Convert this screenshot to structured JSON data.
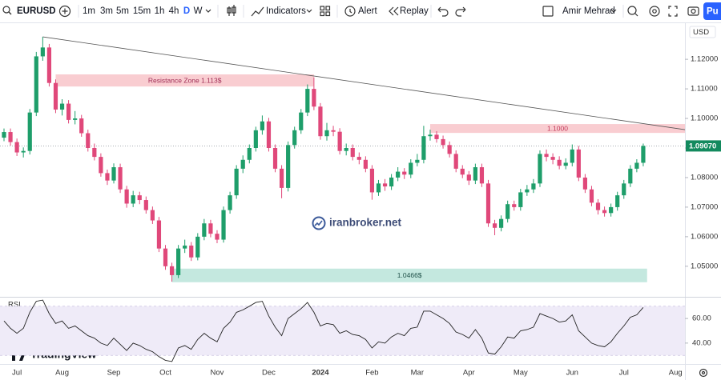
{
  "toolbar": {
    "symbol": "EURUSD",
    "intervals": [
      "1m",
      "3m",
      "5m",
      "15m",
      "1h",
      "4h",
      "D",
      "W"
    ],
    "active_interval": "D",
    "indicators": "Indicators",
    "alert": "Alert",
    "replay": "Replay",
    "user": "Amir Mehrad",
    "publish": "Pu"
  },
  "currency": "USD",
  "watermark": "iranbroker.net",
  "brand": "TradingView",
  "chart_data": [
    {
      "type": "candlestick",
      "up_color": "#1e9e6a",
      "down_color": "#e0487a",
      "categories": [
        null,
        null,
        "Jul",
        null,
        null,
        null,
        null,
        null,
        null,
        "Aug",
        null,
        null,
        null,
        null,
        null,
        null,
        null,
        "Sep",
        null,
        null,
        null,
        null,
        null,
        null,
        null,
        "Oct",
        null,
        null,
        null,
        null,
        null,
        null,
        null,
        "Nov",
        null,
        null,
        null,
        null,
        null,
        null,
        null,
        "Dec",
        null,
        null,
        null,
        null,
        null,
        null,
        null,
        "2024",
        null,
        null,
        null,
        null,
        null,
        null,
        null,
        "Feb",
        null,
        null,
        null,
        null,
        null,
        null,
        "Mar",
        null,
        null,
        null,
        null,
        null,
        null,
        null,
        "Apr",
        null,
        null,
        null,
        null,
        null,
        null,
        null,
        "May",
        null,
        null,
        null,
        null,
        null,
        null,
        null,
        "Jun",
        null,
        null,
        null,
        null,
        null,
        null,
        null,
        "Jul",
        null,
        null,
        null,
        null,
        null,
        null,
        null,
        "Aug",
        null
      ],
      "open": [
        1.0935,
        1.0954,
        1.092,
        1.0885,
        1.089,
        1.102,
        1.121,
        1.124,
        1.112,
        1.103,
        1.105,
        1.0995,
        1.1,
        1.095,
        1.09,
        1.087,
        1.0815,
        1.079,
        1.0835,
        1.076,
        1.0712,
        1.074,
        1.0724,
        1.069,
        1.0655,
        1.056,
        1.05,
        1.047,
        1.056,
        1.057,
        1.053,
        1.06,
        1.0645,
        1.061,
        1.059,
        1.069,
        1.074,
        1.083,
        1.086,
        1.09,
        1.096,
        1.099,
        1.09,
        1.083,
        1.0765,
        1.091,
        1.096,
        1.102,
        1.11,
        1.104,
        1.094,
        1.096,
        1.0955,
        1.089,
        1.09,
        1.087,
        1.086,
        1.083,
        1.075,
        1.078,
        1.077,
        1.08,
        1.082,
        1.081,
        1.085,
        1.086,
        1.094,
        1.0945,
        1.093,
        1.091,
        1.088,
        1.083,
        1.081,
        1.079,
        1.0835,
        1.078,
        1.0645,
        1.063,
        1.066,
        1.071,
        1.07,
        1.075,
        1.076,
        1.078,
        1.088,
        1.087,
        1.086,
        1.084,
        1.085,
        1.0895,
        1.08,
        1.076,
        1.0715,
        1.069,
        1.068,
        1.07,
        1.074,
        1.078,
        1.083,
        1.085,
        null,
        null,
        null,
        null,
        null,
        null
      ],
      "high": [
        1.0966,
        1.0966,
        1.0932,
        1.0902,
        1.1032,
        1.1225,
        1.1276,
        1.1252,
        1.1132,
        1.1065,
        1.1062,
        1.1025,
        1.1012,
        1.0962,
        1.0915,
        1.0882,
        1.0827,
        1.0848,
        1.0847,
        1.0772,
        1.0755,
        1.0752,
        1.0736,
        1.0702,
        1.0667,
        1.0572,
        1.0512,
        1.0572,
        1.059,
        1.0582,
        1.0612,
        1.066,
        1.0657,
        1.0622,
        1.0702,
        1.0752,
        1.0842,
        1.0875,
        1.0912,
        1.0972,
        1.101,
        1.1002,
        1.0912,
        1.0842,
        1.0922,
        1.0972,
        1.1032,
        1.1115,
        1.1139,
        1.1052,
        1.0985,
        1.0975,
        1.0967,
        1.0915,
        1.0912,
        1.0885,
        1.0872,
        1.0842,
        1.0792,
        1.0795,
        1.0812,
        1.0835,
        1.0832,
        1.0862,
        1.088,
        1.0975,
        1.0962,
        1.0957,
        1.0942,
        1.0922,
        1.0892,
        1.0842,
        1.0822,
        1.0847,
        1.0847,
        1.0792,
        1.0657,
        1.0672,
        1.0722,
        1.0722,
        1.0762,
        1.0775,
        1.0795,
        1.0892,
        1.0895,
        1.0882,
        1.0872,
        1.0865,
        1.0912,
        1.0907,
        1.0812,
        1.0772,
        1.0727,
        1.0702,
        1.0712,
        1.0752,
        1.0792,
        1.0842,
        1.0862,
        1.0915,
        null,
        null,
        null,
        null,
        null,
        null
      ],
      "low": [
        1.0923,
        1.0908,
        1.0873,
        1.0868,
        1.0878,
        1.1008,
        1.1195,
        1.1108,
        1.1018,
        1.101,
        1.0983,
        1.098,
        1.0938,
        1.0888,
        1.0858,
        1.0803,
        1.0775,
        1.078,
        1.0748,
        1.0698,
        1.07,
        1.071,
        1.0678,
        1.0643,
        1.0548,
        1.0488,
        1.0448,
        1.046,
        1.0545,
        1.0518,
        1.052,
        1.0588,
        1.0598,
        1.0578,
        1.058,
        1.0678,
        1.0728,
        1.0815,
        1.0848,
        1.0888,
        1.0945,
        1.0888,
        1.0818,
        1.073,
        1.0753,
        1.0898,
        1.0948,
        1.1008,
        1.1028,
        1.0928,
        1.0925,
        1.094,
        1.0878,
        1.0875,
        1.0858,
        1.0845,
        1.0818,
        1.0725,
        1.0738,
        1.0755,
        1.0758,
        1.0788,
        1.0795,
        1.0798,
        1.0838,
        1.0848,
        1.0925,
        1.0918,
        1.0898,
        1.0868,
        1.0818,
        1.0798,
        1.0775,
        1.0778,
        1.0768,
        1.0633,
        1.0605,
        1.0618,
        1.0648,
        1.0688,
        1.0688,
        1.0738,
        1.0748,
        1.0768,
        1.0855,
        1.0845,
        1.0828,
        1.0828,
        1.0838,
        1.0788,
        1.0748,
        1.0703,
        1.0675,
        1.0668,
        1.0668,
        1.0688,
        1.0728,
        1.0768,
        1.0818,
        1.0838,
        null,
        null,
        null,
        null,
        null,
        null
      ],
      "close": [
        1.0954,
        1.092,
        1.0885,
        1.089,
        1.102,
        1.121,
        1.124,
        1.112,
        1.103,
        1.105,
        1.0995,
        1.1,
        1.095,
        1.09,
        1.087,
        1.0815,
        1.079,
        1.0835,
        1.076,
        1.0712,
        1.074,
        1.0724,
        1.069,
        1.0655,
        1.056,
        1.05,
        1.047,
        1.056,
        1.057,
        1.053,
        1.06,
        1.0645,
        1.061,
        1.059,
        1.069,
        1.074,
        1.083,
        1.086,
        1.09,
        1.096,
        1.099,
        1.09,
        1.083,
        1.0765,
        1.091,
        1.096,
        1.102,
        1.11,
        1.104,
        1.094,
        1.096,
        1.0955,
        1.089,
        1.09,
        1.087,
        1.086,
        1.083,
        1.075,
        1.078,
        1.077,
        1.08,
        1.082,
        1.081,
        1.085,
        1.086,
        1.094,
        1.0945,
        1.093,
        1.091,
        1.088,
        1.083,
        1.081,
        1.079,
        1.0835,
        1.078,
        1.0645,
        1.063,
        1.066,
        1.071,
        1.07,
        1.075,
        1.076,
        1.078,
        1.088,
        1.087,
        1.086,
        1.084,
        1.085,
        1.0895,
        1.08,
        1.076,
        1.0715,
        1.069,
        1.068,
        1.07,
        1.074,
        1.078,
        1.083,
        1.085,
        1.0907,
        null,
        null,
        null,
        null,
        null,
        null
      ],
      "ylim": [
        1.044,
        1.1314
      ],
      "yticks": [
        {
          "value": 1.12,
          "label": "1.12000"
        },
        {
          "value": 1.11,
          "label": "1.11000"
        },
        {
          "value": 1.1,
          "label": "1.10000"
        },
        {
          "value": 1.09,
          "label": "1.09000"
        },
        {
          "value": 1.08,
          "label": "1.08000"
        },
        {
          "value": 1.07,
          "label": "1.07000"
        },
        {
          "value": 1.06,
          "label": "1.06000"
        },
        {
          "value": 1.05,
          "label": "1.05000"
        }
      ],
      "grid": false,
      "last_price": {
        "value": 1.0907,
        "label": "1.09070",
        "color": "#138a5e"
      },
      "zones": [
        {
          "label": "Resistance Zone 1.113$",
          "from": 8,
          "to": 48,
          "top": 1.1149,
          "bottom": 1.1108,
          "color": "#f9cdd1",
          "text_color": "#a02d55"
        },
        {
          "label": "1.1000",
          "from": 66,
          "to": 106,
          "top": 1.0981,
          "bottom": 1.0951,
          "color": "#f9cdd1",
          "text_color": "#c23a5a"
        },
        {
          "label": "1.0466$",
          "from": 26,
          "to": 99.6,
          "top": 1.0492,
          "bottom": 1.0446,
          "color": "#c4e8df",
          "text_color": "#1f5048"
        }
      ],
      "trendline": {
        "from": [
          6,
          1.1276
        ],
        "to": [
          105.5,
          1.0962
        ],
        "color": "#555555"
      }
    },
    {
      "type": "line",
      "title": "RSI",
      "color": "#222222",
      "values": [
        58,
        52,
        48,
        52,
        65,
        74,
        75,
        64,
        56,
        58,
        52,
        54,
        50,
        46,
        44,
        40,
        38,
        44,
        39,
        34,
        40,
        38,
        35,
        33,
        29,
        26,
        25,
        36,
        38,
        35,
        43,
        48,
        44,
        41,
        52,
        57,
        65,
        67,
        70,
        73,
        74,
        62,
        53,
        46,
        60,
        64,
        68,
        73,
        65,
        54,
        56,
        55,
        48,
        50,
        47,
        46,
        43,
        36,
        41,
        40,
        45,
        48,
        46,
        52,
        53,
        66,
        66,
        63,
        60,
        56,
        49,
        47,
        44,
        51,
        44,
        32,
        31,
        37,
        45,
        44,
        50,
        51,
        53,
        64,
        62,
        60,
        57,
        58,
        63,
        50,
        45,
        40,
        38,
        37,
        41,
        48,
        54,
        61,
        63,
        69,
        null,
        null,
        null,
        null,
        null,
        null
      ],
      "ylim": [
        23,
        77
      ],
      "yticks": [
        {
          "value": 60,
          "label": "60.00"
        },
        {
          "value": 40,
          "label": "40.00"
        }
      ],
      "band": [
        30,
        70
      ],
      "band_color": "#efebf8"
    }
  ]
}
